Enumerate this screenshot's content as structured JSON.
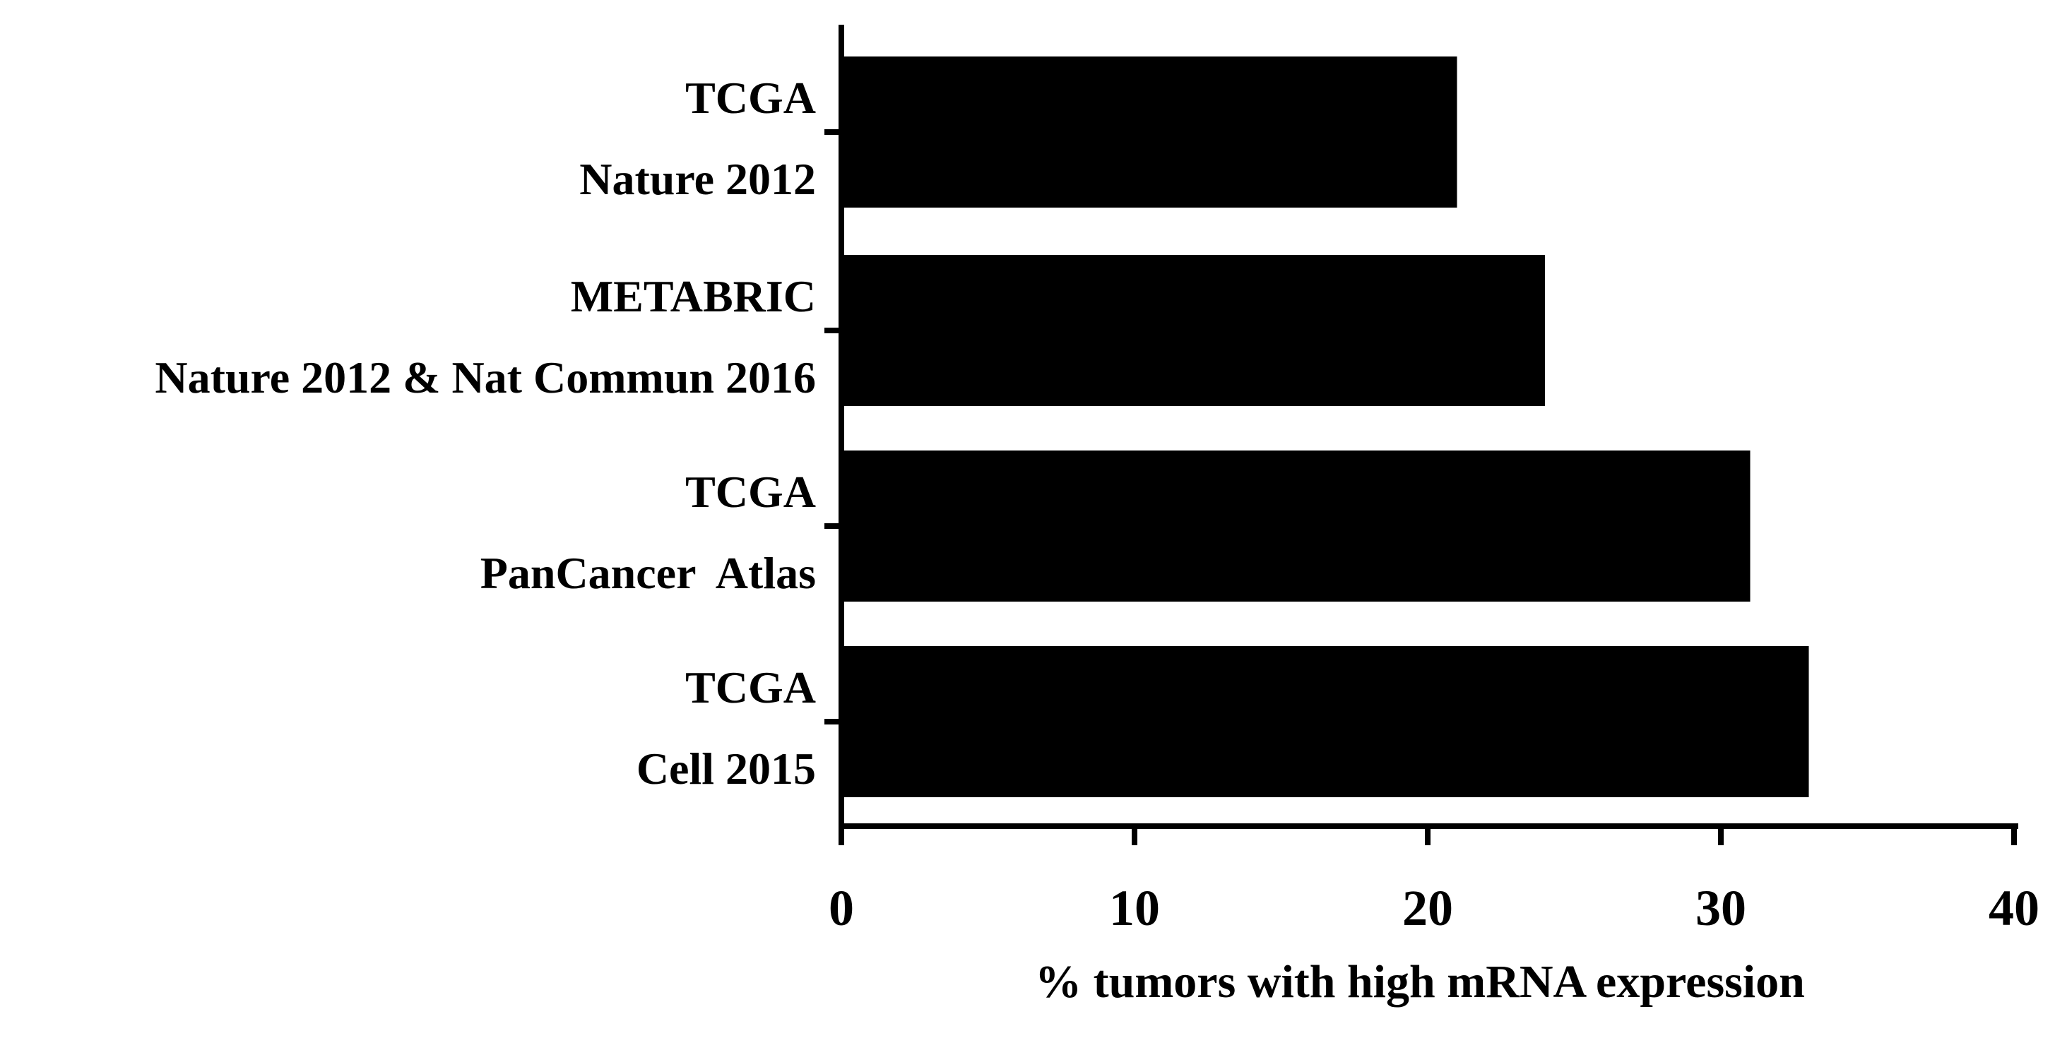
{
  "chart_data": {
    "type": "bar",
    "orientation": "horizontal",
    "categories": [
      {
        "line1": "TCGA",
        "line2": "Nature 2012"
      },
      {
        "line1": "METABRIC",
        "line2": "Nature 2012 & Nat Commun 2016"
      },
      {
        "line1": "TCGA",
        "line2": "PanCancer  Atlas"
      },
      {
        "line1": "TCGA",
        "line2": "Cell 2015"
      }
    ],
    "values": [
      21,
      24,
      31,
      33
    ],
    "xlabel": "% tumors with high mRNA expression",
    "ylabel": "",
    "title": "",
    "xlim": [
      0,
      40
    ],
    "xticks": [
      "0",
      "10",
      "20",
      "30",
      "40"
    ],
    "bar_color": "#000000",
    "grid": false,
    "legend": "none"
  }
}
